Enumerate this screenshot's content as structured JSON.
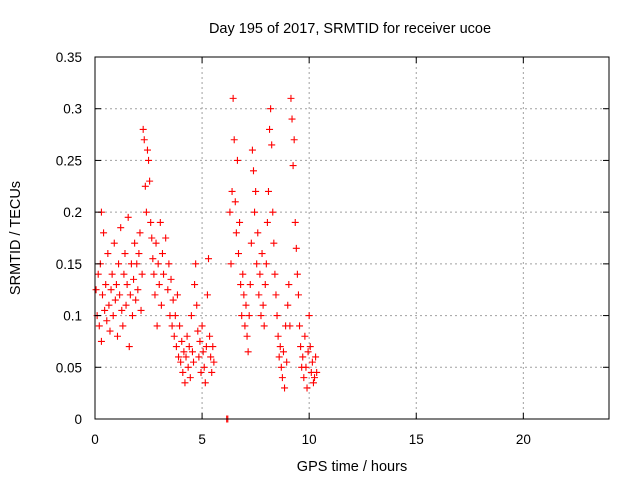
{
  "chart_data": {
    "type": "scatter",
    "title": "Day 195 of 2017, SRMTID for receiver ucoe",
    "xlabel": "GPS time / hours",
    "ylabel": "SRMTID / TECUs",
    "xlim": [
      0,
      24
    ],
    "ylim": [
      0,
      0.35
    ],
    "xticks": [
      0,
      5,
      10,
      15,
      20
    ],
    "xtick_labels": [
      "0",
      "5",
      "10",
      "15",
      "20"
    ],
    "yticks": [
      0,
      0.05,
      0.1,
      0.15,
      0.2,
      0.25,
      0.3,
      0.35
    ],
    "ytick_labels": [
      "0",
      "0.05",
      "0.1",
      "0.15",
      "0.2",
      "0.25",
      "0.3",
      "0.35"
    ],
    "grid": true,
    "marker": "plus",
    "color": "#ff0000",
    "series": [
      {
        "points": [
          [
            0.05,
            0.125
          ],
          [
            0.1,
            0.1
          ],
          [
            0.15,
            0.14
          ],
          [
            0.2,
            0.09
          ],
          [
            0.25,
            0.15
          ],
          [
            0.3,
            0.2
          ],
          [
            0.3,
            0.075
          ],
          [
            0.35,
            0.12
          ],
          [
            0.4,
            0.18
          ],
          [
            0.45,
            0.105
          ],
          [
            0.5,
            0.13
          ],
          [
            0.55,
            0.095
          ],
          [
            0.6,
            0.16
          ],
          [
            0.65,
            0.11
          ],
          [
            0.7,
            0.085
          ],
          [
            0.75,
            0.125
          ],
          [
            0.8,
            0.14
          ],
          [
            0.85,
            0.1
          ],
          [
            0.9,
            0.17
          ],
          [
            0.95,
            0.115
          ],
          [
            1.0,
            0.13
          ],
          [
            1.05,
            0.08
          ],
          [
            1.1,
            0.15
          ],
          [
            1.15,
            0.12
          ],
          [
            1.2,
            0.185
          ],
          [
            1.25,
            0.105
          ],
          [
            1.3,
            0.09
          ],
          [
            1.35,
            0.14
          ],
          [
            1.4,
            0.16
          ],
          [
            1.45,
            0.11
          ],
          [
            1.5,
            0.13
          ],
          [
            1.55,
            0.195
          ],
          [
            1.6,
            0.07
          ],
          [
            1.65,
            0.12
          ],
          [
            1.7,
            0.15
          ],
          [
            1.75,
            0.1
          ],
          [
            1.8,
            0.135
          ],
          [
            1.85,
            0.17
          ],
          [
            1.9,
            0.115
          ],
          [
            1.95,
            0.15
          ],
          [
            2.0,
            0.125
          ],
          [
            2.05,
            0.16
          ],
          [
            2.1,
            0.18
          ],
          [
            2.15,
            0.105
          ],
          [
            2.2,
            0.14
          ],
          [
            2.25,
            0.28
          ],
          [
            2.3,
            0.27
          ],
          [
            2.35,
            0.225
          ],
          [
            2.4,
            0.2
          ],
          [
            2.45,
            0.26
          ],
          [
            2.5,
            0.25
          ],
          [
            2.55,
            0.23
          ],
          [
            2.6,
            0.19
          ],
          [
            2.65,
            0.175
          ],
          [
            2.7,
            0.155
          ],
          [
            2.75,
            0.14
          ],
          [
            2.8,
            0.12
          ],
          [
            2.85,
            0.17
          ],
          [
            2.9,
            0.09
          ],
          [
            2.95,
            0.15
          ],
          [
            3.0,
            0.13
          ],
          [
            3.05,
            0.19
          ],
          [
            3.1,
            0.11
          ],
          [
            3.15,
            0.16
          ],
          [
            3.2,
            0.14
          ],
          [
            3.3,
            0.175
          ],
          [
            3.4,
            0.125
          ],
          [
            3.45,
            0.15
          ],
          [
            3.5,
            0.1
          ],
          [
            3.55,
            0.135
          ],
          [
            3.6,
            0.09
          ],
          [
            3.65,
            0.115
          ],
          [
            3.7,
            0.08
          ],
          [
            3.75,
            0.1
          ],
          [
            3.8,
            0.07
          ],
          [
            3.85,
            0.12
          ],
          [
            3.9,
            0.06
          ],
          [
            3.95,
            0.09
          ],
          [
            4.0,
            0.055
          ],
          [
            4.05,
            0.075
          ],
          [
            4.1,
            0.045
          ],
          [
            4.15,
            0.065
          ],
          [
            4.2,
            0.035
          ],
          [
            4.25,
            0.06
          ],
          [
            4.3,
            0.08
          ],
          [
            4.35,
            0.05
          ],
          [
            4.4,
            0.07
          ],
          [
            4.45,
            0.04
          ],
          [
            4.5,
            0.1
          ],
          [
            4.55,
            0.065
          ],
          [
            4.6,
            0.055
          ],
          [
            4.65,
            0.13
          ],
          [
            4.7,
            0.15
          ],
          [
            4.75,
            0.11
          ],
          [
            4.8,
            0.085
          ],
          [
            4.85,
            0.06
          ],
          [
            4.9,
            0.075
          ],
          [
            4.95,
            0.045
          ],
          [
            5.0,
            0.09
          ],
          [
            5.05,
            0.065
          ],
          [
            5.1,
            0.05
          ],
          [
            5.15,
            0.035
          ],
          [
            5.2,
            0.07
          ],
          [
            5.25,
            0.12
          ],
          [
            5.3,
            0.155
          ],
          [
            5.35,
            0.08
          ],
          [
            5.4,
            0.06
          ],
          [
            5.45,
            0.045
          ],
          [
            5.5,
            0.07
          ],
          [
            5.55,
            0.055
          ],
          [
            6.15,
            0.0
          ],
          [
            6.2,
            0.0
          ],
          [
            6.3,
            0.2
          ],
          [
            6.35,
            0.15
          ],
          [
            6.4,
            0.22
          ],
          [
            6.45,
            0.31
          ],
          [
            6.5,
            0.27
          ],
          [
            6.55,
            0.21
          ],
          [
            6.6,
            0.18
          ],
          [
            6.65,
            0.25
          ],
          [
            6.7,
            0.16
          ],
          [
            6.75,
            0.19
          ],
          [
            6.8,
            0.13
          ],
          [
            6.85,
            0.1
          ],
          [
            6.9,
            0.14
          ],
          [
            6.95,
            0.12
          ],
          [
            7.0,
            0.09
          ],
          [
            7.05,
            0.11
          ],
          [
            7.1,
            0.08
          ],
          [
            7.15,
            0.065
          ],
          [
            7.2,
            0.1
          ],
          [
            7.25,
            0.13
          ],
          [
            7.3,
            0.17
          ],
          [
            7.35,
            0.26
          ],
          [
            7.4,
            0.24
          ],
          [
            7.45,
            0.2
          ],
          [
            7.5,
            0.22
          ],
          [
            7.55,
            0.15
          ],
          [
            7.6,
            0.18
          ],
          [
            7.65,
            0.12
          ],
          [
            7.7,
            0.14
          ],
          [
            7.75,
            0.1
          ],
          [
            7.8,
            0.16
          ],
          [
            7.85,
            0.11
          ],
          [
            7.9,
            0.09
          ],
          [
            7.95,
            0.13
          ],
          [
            8.0,
            0.15
          ],
          [
            8.05,
            0.19
          ],
          [
            8.1,
            0.22
          ],
          [
            8.15,
            0.28
          ],
          [
            8.2,
            0.3
          ],
          [
            8.25,
            0.265
          ],
          [
            8.3,
            0.2
          ],
          [
            8.35,
            0.17
          ],
          [
            8.4,
            0.14
          ],
          [
            8.45,
            0.12
          ],
          [
            8.5,
            0.1
          ],
          [
            8.55,
            0.08
          ],
          [
            8.6,
            0.06
          ],
          [
            8.65,
            0.07
          ],
          [
            8.7,
            0.05
          ],
          [
            8.75,
            0.04
          ],
          [
            8.8,
            0.065
          ],
          [
            8.85,
            0.03
          ],
          [
            8.9,
            0.09
          ],
          [
            8.95,
            0.055
          ],
          [
            9.0,
            0.11
          ],
          [
            9.05,
            0.13
          ],
          [
            9.1,
            0.09
          ],
          [
            9.15,
            0.31
          ],
          [
            9.2,
            0.29
          ],
          [
            9.25,
            0.245
          ],
          [
            9.3,
            0.27
          ],
          [
            9.35,
            0.19
          ],
          [
            9.4,
            0.165
          ],
          [
            9.45,
            0.14
          ],
          [
            9.5,
            0.12
          ],
          [
            9.55,
            0.09
          ],
          [
            9.6,
            0.07
          ],
          [
            9.65,
            0.05
          ],
          [
            9.7,
            0.06
          ],
          [
            9.75,
            0.04
          ],
          [
            9.8,
            0.08
          ],
          [
            9.85,
            0.05
          ],
          [
            9.9,
            0.03
          ],
          [
            9.95,
            0.065
          ],
          [
            10.0,
            0.1
          ],
          [
            10.05,
            0.07
          ],
          [
            10.1,
            0.045
          ],
          [
            10.15,
            0.055
          ],
          [
            10.2,
            0.035
          ],
          [
            10.25,
            0.04
          ],
          [
            10.3,
            0.06
          ],
          [
            10.35,
            0.045
          ]
        ]
      }
    ]
  }
}
